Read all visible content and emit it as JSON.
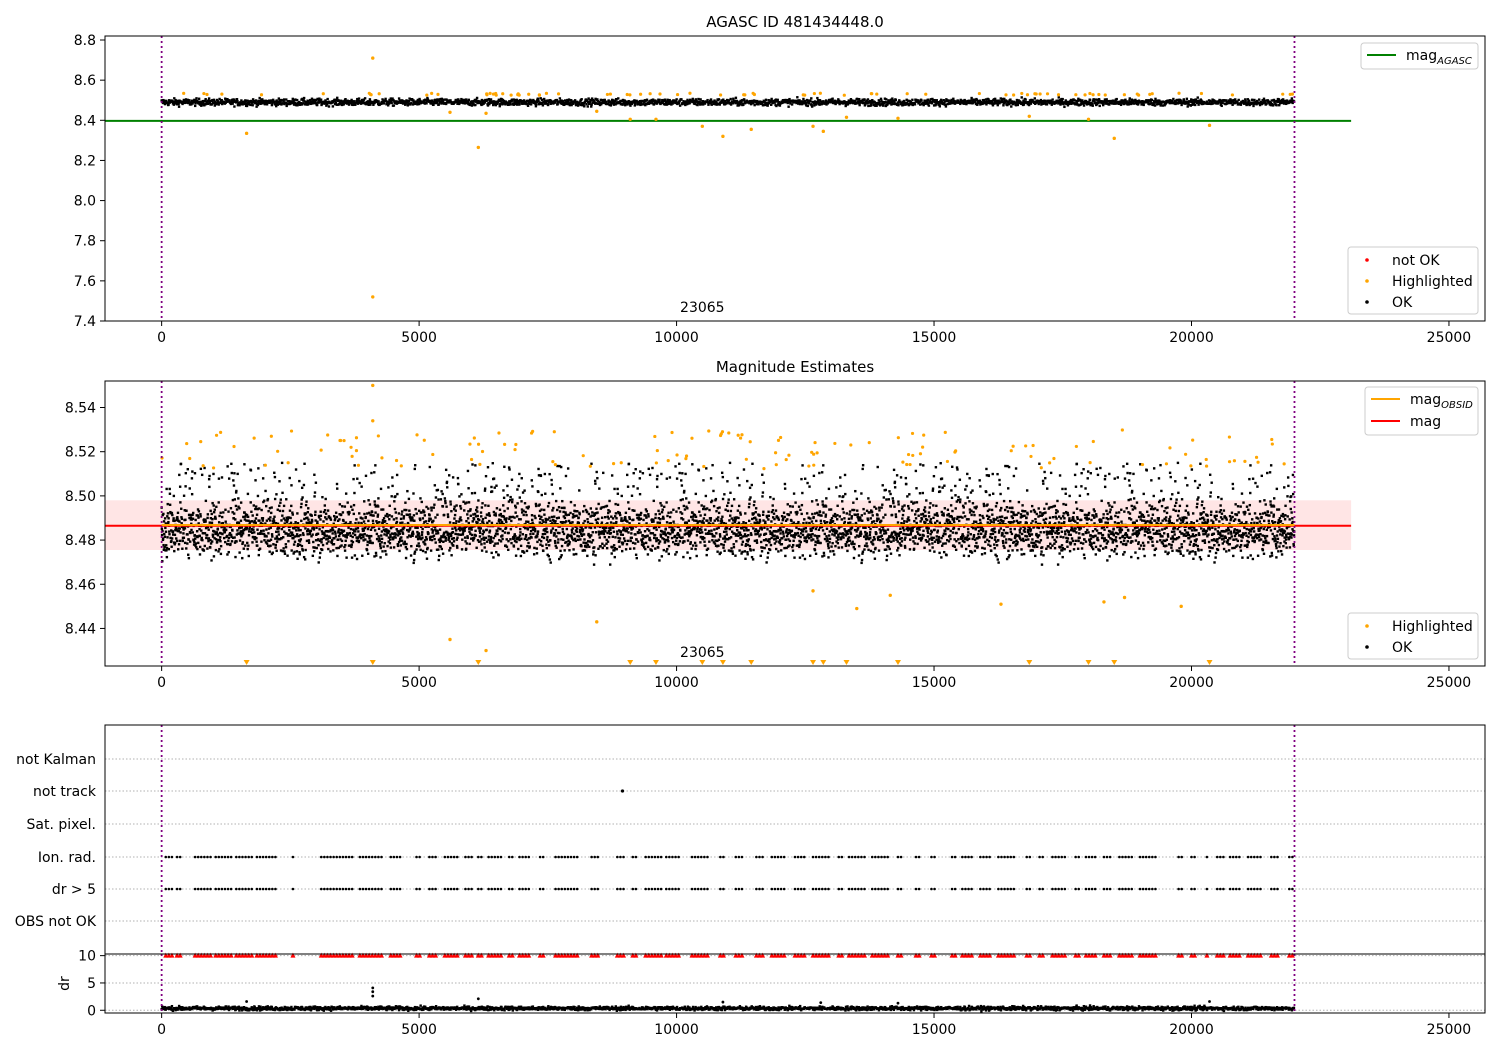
{
  "chart_data": [
    {
      "id": "panel1",
      "type": "scatter",
      "title": "AGASC ID 481434448.0",
      "xlim": [
        -1100,
        25700
      ],
      "ylim": [
        7.4,
        8.82
      ],
      "xticks": [
        0,
        5000,
        10000,
        15000,
        20000,
        25000
      ],
      "xtick_labels": [
        "0",
        "5000",
        "10000",
        "15000",
        "20000",
        "25000"
      ],
      "yticks": [
        7.4,
        7.6,
        7.8,
        8.0,
        8.2,
        8.4,
        8.6,
        8.8
      ],
      "ytick_labels": [
        "7.4",
        "7.6",
        "7.8",
        "8.0",
        "8.2",
        "8.4",
        "8.6",
        "8.8"
      ],
      "vlines": [
        0,
        22000
      ],
      "annotation": {
        "text": "23065",
        "x": 10500
      },
      "hlines": [
        {
          "name": "mag_AGASC",
          "label_main": "mag",
          "label_sub": "AGASC",
          "y": 8.397,
          "x": [
            -1100,
            23100
          ],
          "color": "#008000"
        }
      ],
      "ok_band": {
        "x": [
          0,
          22000
        ],
        "center": 8.49,
        "spread": 0.012
      },
      "highlight_points": [
        [
          4100,
          8.71
        ],
        [
          4100,
          7.52
        ],
        [
          1650,
          8.335
        ],
        [
          6150,
          8.265
        ],
        [
          5600,
          8.44
        ],
        [
          6300,
          8.435
        ],
        [
          10500,
          8.37
        ],
        [
          10900,
          8.32
        ],
        [
          11450,
          8.355
        ],
        [
          12650,
          8.37
        ],
        [
          12850,
          8.345
        ],
        [
          13300,
          8.415
        ],
        [
          14300,
          8.41
        ],
        [
          18500,
          8.31
        ],
        [
          20350,
          8.375
        ],
        [
          16850,
          8.42
        ],
        [
          18000,
          8.405
        ],
        [
          8450,
          8.445
        ],
        [
          9100,
          8.405
        ],
        [
          9600,
          8.405
        ]
      ],
      "legend_lines": [
        {
          "label_main": "mag",
          "label_sub": "AGASC",
          "color": "#008000"
        }
      ],
      "legend_points": [
        {
          "label": "not OK",
          "color": "#ff0000"
        },
        {
          "label": "Highlighted",
          "color": "#ffa500"
        },
        {
          "label": "OK",
          "color": "#000000"
        }
      ]
    },
    {
      "id": "panel2",
      "type": "scatter",
      "title": "Magnitude Estimates",
      "xlim": [
        -1100,
        25700
      ],
      "ylim": [
        8.423,
        8.552
      ],
      "xticks": [
        0,
        5000,
        10000,
        15000,
        20000,
        25000
      ],
      "xtick_labels": [
        "0",
        "5000",
        "10000",
        "15000",
        "20000",
        "25000"
      ],
      "yticks": [
        8.44,
        8.46,
        8.48,
        8.5,
        8.52,
        8.54
      ],
      "ytick_labels": [
        "8.44",
        "8.46",
        "8.48",
        "8.50",
        "8.52",
        "8.54"
      ],
      "vlines": [
        0,
        22000
      ],
      "annotation": {
        "text": "23065",
        "x": 10500
      },
      "band": {
        "y0": 8.4755,
        "y1": 8.498,
        "x": [
          -1100,
          23100
        ],
        "color": "#ff0000",
        "alpha": 0.1
      },
      "hlines": [
        {
          "name": "mag",
          "label_main": "mag",
          "label_sub": "",
          "y": 8.4865,
          "x": [
            -1100,
            23100
          ],
          "color": "#ff0000"
        },
        {
          "name": "mag_OBSID",
          "label_main": "mag",
          "label_sub": "OBSID",
          "y": 8.4868,
          "x": [
            0,
            22000
          ],
          "color": "#ffa500"
        }
      ],
      "ok_band": {
        "x": [
          0,
          22000
        ],
        "center": 8.485,
        "spread": 0.0085
      },
      "highlight_points": [
        [
          4100,
          8.55
        ],
        [
          4100,
          8.534
        ],
        [
          5600,
          8.435
        ],
        [
          6300,
          8.43
        ],
        [
          8450,
          8.443
        ],
        [
          12650,
          8.457
        ],
        [
          13500,
          8.449
        ],
        [
          14150,
          8.455
        ],
        [
          16300,
          8.451
        ],
        [
          18300,
          8.452
        ],
        [
          18700,
          8.454
        ],
        [
          19800,
          8.45
        ]
      ],
      "lower_markers_x": [
        1650,
        4100,
        6150,
        9100,
        9600,
        10500,
        10900,
        11450,
        12650,
        12850,
        13300,
        14300,
        16850,
        18000,
        18500,
        20350
      ],
      "legend_lines": [
        {
          "label_main": "mag",
          "label_sub": "OBSID",
          "color": "#ffa500"
        },
        {
          "label_main": "mag",
          "label_sub": "",
          "color": "#ff0000"
        }
      ],
      "legend_points": [
        {
          "label": "Highlighted",
          "color": "#ffa500"
        },
        {
          "label": "OK",
          "color": "#000000"
        }
      ]
    },
    {
      "id": "panel3",
      "type": "scatter",
      "xlim": [
        -1100,
        25700
      ],
      "categories": [
        "not Kalman",
        "not track",
        "Sat. pixel.",
        "Ion. rad.",
        "dr > 5",
        "OBS not OK"
      ],
      "vlines": [
        0,
        22000
      ],
      "flag_points": {
        "not track": [
          8950
        ]
      },
      "flag_runs": [
        [
          80,
          200
        ],
        [
          300,
          400
        ],
        [
          650,
          1000
        ],
        [
          1050,
          1350
        ],
        [
          1450,
          1750
        ],
        [
          1850,
          2250
        ],
        [
          2550,
          2600
        ],
        [
          3100,
          3750
        ],
        [
          3850,
          4300
        ],
        [
          4450,
          4650
        ],
        [
          4950,
          5050
        ],
        [
          5200,
          5350
        ],
        [
          5500,
          5750
        ],
        [
          5900,
          6050
        ],
        [
          6150,
          6250
        ],
        [
          6350,
          6600
        ],
        [
          6750,
          6850
        ],
        [
          6950,
          7150
        ],
        [
          7350,
          7450
        ],
        [
          7650,
          8100
        ],
        [
          8350,
          8500
        ],
        [
          8850,
          9000
        ],
        [
          9150,
          9250
        ],
        [
          9400,
          9700
        ],
        [
          9800,
          10050
        ],
        [
          10300,
          10600
        ],
        [
          10850,
          10950
        ],
        [
          11150,
          11300
        ],
        [
          11550,
          11700
        ],
        [
          11850,
          12100
        ],
        [
          12300,
          12500
        ],
        [
          12650,
          12950
        ],
        [
          13150,
          13250
        ],
        [
          13350,
          13650
        ],
        [
          13800,
          14100
        ],
        [
          14300,
          14400
        ],
        [
          14650,
          14750
        ],
        [
          14950,
          15050
        ],
        [
          15350,
          15450
        ],
        [
          15550,
          15750
        ],
        [
          15900,
          16100
        ],
        [
          16250,
          16550
        ],
        [
          16800,
          16900
        ],
        [
          17050,
          17150
        ],
        [
          17300,
          17550
        ],
        [
          17750,
          17850
        ],
        [
          17950,
          18150
        ],
        [
          18300,
          18450
        ],
        [
          18600,
          18850
        ],
        [
          19000,
          19350
        ],
        [
          19750,
          19850
        ],
        [
          20000,
          20100
        ],
        [
          20300,
          20350
        ],
        [
          20500,
          20650
        ],
        [
          20750,
          20950
        ],
        [
          21100,
          21350
        ],
        [
          21550,
          21700
        ],
        [
          21900,
          22000
        ]
      ],
      "flagged_rows": [
        "Ion. rad.",
        "dr > 5"
      ]
    },
    {
      "id": "panel4",
      "type": "scatter",
      "xlim": [
        -1100,
        25700
      ],
      "ylim": [
        -0.5,
        10.3
      ],
      "ylabel": "dr",
      "yticks": [
        0,
        5,
        10
      ],
      "ytick_labels": [
        "0",
        "5",
        "10"
      ],
      "xticks": [
        0,
        5000,
        10000,
        15000,
        20000,
        25000
      ],
      "xtick_labels": [
        "0",
        "5000",
        "10000",
        "15000",
        "20000",
        "25000"
      ],
      "vlines": [
        0,
        22000
      ],
      "ok_band": {
        "x": [
          0,
          22000
        ],
        "center": 0.35,
        "spread": 0.25
      },
      "spike_points": [
        [
          1650,
          1.6
        ],
        [
          4100,
          4.1
        ],
        [
          4100,
          3.4
        ],
        [
          4100,
          2.6
        ],
        [
          6150,
          2.1
        ],
        [
          10900,
          1.5
        ],
        [
          12800,
          1.4
        ],
        [
          14300,
          1.3
        ],
        [
          20350,
          1.6
        ]
      ],
      "capped_value": 10,
      "capped_color": "#ff0000"
    }
  ]
}
